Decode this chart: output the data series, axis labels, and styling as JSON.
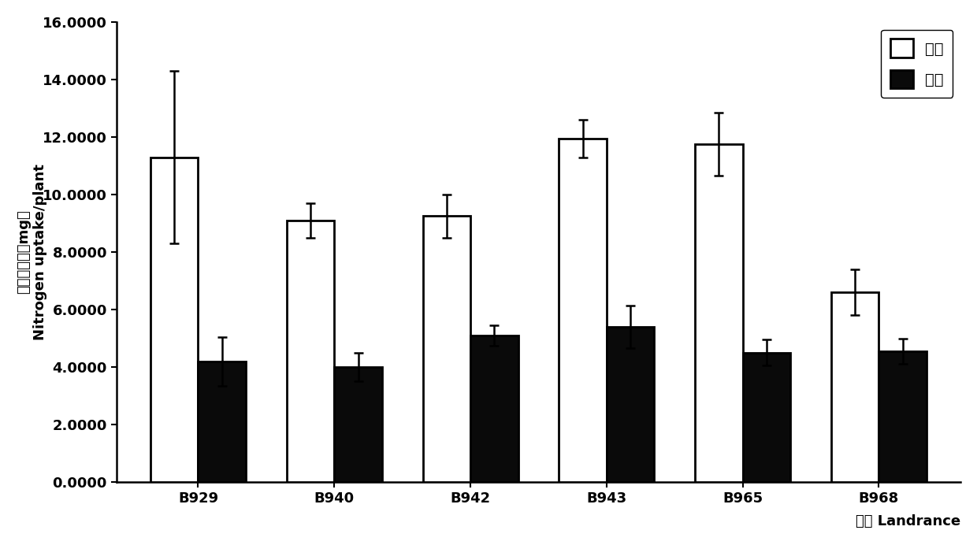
{
  "categories": [
    "B929",
    "B940",
    "B942",
    "B943",
    "B965",
    "B968"
  ],
  "full_n_values": [
    11.3,
    9.1,
    9.25,
    11.95,
    11.75,
    6.6
  ],
  "low_n_values": [
    4.2,
    4.0,
    5.1,
    5.4,
    4.5,
    4.55
  ],
  "full_n_errors": [
    3.0,
    0.6,
    0.75,
    0.65,
    1.1,
    0.8
  ],
  "low_n_errors": [
    0.85,
    0.5,
    0.35,
    0.75,
    0.45,
    0.45
  ],
  "full_n_color": "#ffffff",
  "low_n_color": "#0a0a0a",
  "bar_edgecolor": "#000000",
  "bar_width": 0.35,
  "ylim": [
    0,
    16.0
  ],
  "yticks": [
    0.0,
    2.0,
    4.0,
    6.0,
    8.0,
    10.0,
    12.0,
    14.0,
    16.0
  ],
  "ytick_labels": [
    "0.0000",
    "2.0000",
    "4.0000",
    "6.0000",
    "8.0000",
    "10.0000",
    "12.0000",
    "14.0000",
    "16.0000"
  ],
  "ylabel_cn": "单株吸氮量（mg）",
  "ylabel_en": "Nitrogen uptake/plant",
  "xlabel": "品种 Landrance",
  "legend_full": "全氮",
  "legend_low": "低氮",
  "axis_fontsize": 13,
  "tick_fontsize": 13,
  "legend_fontsize": 14,
  "background_color": "#ffffff",
  "capsize": 4,
  "linewidth": 2.0
}
